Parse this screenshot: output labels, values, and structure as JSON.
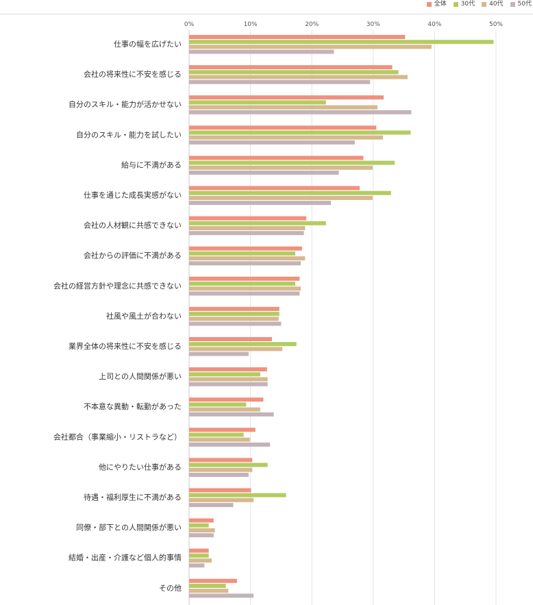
{
  "chart_data": {
    "type": "bar",
    "orientation": "horizontal",
    "xlim": [
      0,
      50
    ],
    "x_ticks": [
      0,
      10,
      20,
      30,
      40,
      50
    ],
    "x_tick_suffix": "%",
    "grid": true,
    "legend_position": "top-right",
    "categories": [
      "仕事の幅を広げたい",
      "会社の将来性に不安を感じる",
      "自分のスキル・能力が活かせない",
      "自分のスキル・能力を試したい",
      "給与に不満がある",
      "仕事を通じた成長実感がない",
      "会社の人材観に共感できない",
      "会社からの評価に不満がある",
      "会社の経営方針や理念に共感できない",
      "社風や風土が合わない",
      "業界全体の将来性に不安を感じる",
      "上司との人間関係が悪い",
      "不本意な異動・転勤があった",
      "会社都合（事業縮小・リストラなど）",
      "他にやりたい仕事がある",
      "待遇・福利厚生に不満がある",
      "同僚・部下との人間関係が悪い",
      "結婚・出産・介護など個人的事情",
      "その他"
    ],
    "series": [
      {
        "name": "全体",
        "color": "#f0917e",
        "values": [
          35.2,
          33.1,
          31.7,
          30.5,
          28.4,
          27.8,
          19.1,
          18.4,
          18.0,
          14.7,
          13.5,
          12.7,
          12.1,
          10.8,
          10.3,
          10.1,
          4.0,
          3.2,
          7.8
        ]
      },
      {
        "name": "30代",
        "color": "#b3cc62",
        "values": [
          49.6,
          34.1,
          22.3,
          36.1,
          33.5,
          32.9,
          22.3,
          17.3,
          17.3,
          14.7,
          17.5,
          11.6,
          9.3,
          8.9,
          12.8,
          15.8,
          3.2,
          3.2,
          6.0
        ]
      },
      {
        "name": "40代",
        "color": "#d7b98f",
        "values": [
          39.5,
          35.6,
          30.7,
          31.6,
          29.9,
          29.9,
          18.9,
          18.9,
          18.2,
          14.6,
          15.2,
          12.8,
          11.6,
          9.9,
          10.3,
          10.5,
          4.2,
          3.7,
          6.4
        ]
      },
      {
        "name": "50代",
        "color": "#c3b3b8",
        "values": [
          23.6,
          29.5,
          36.2,
          27.0,
          24.4,
          23.1,
          18.7,
          18.2,
          18.0,
          15.0,
          9.7,
          12.8,
          13.8,
          13.2,
          9.7,
          7.2,
          4.0,
          2.5,
          10.5
        ]
      }
    ]
  }
}
